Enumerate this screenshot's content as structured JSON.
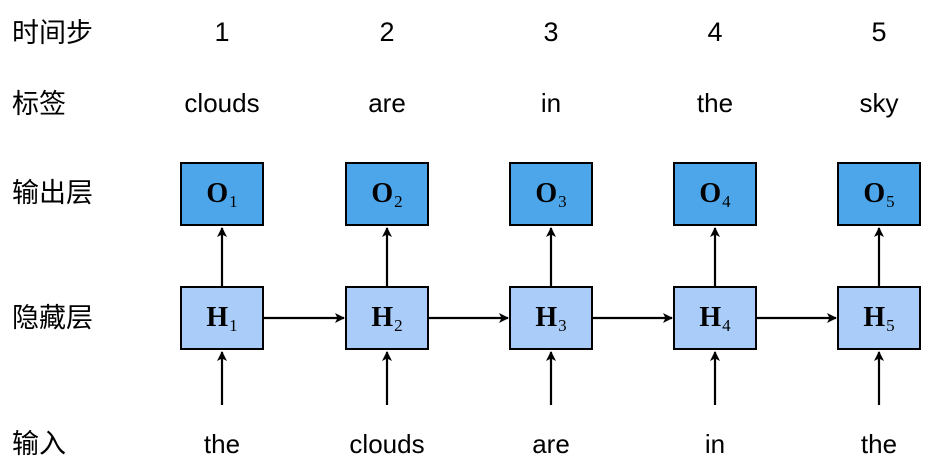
{
  "row_labels": {
    "timestep": "时间步",
    "label": "标签",
    "output_layer": "输出层",
    "hidden_layer": "隐藏层",
    "input": "输入"
  },
  "steps": [
    {
      "timestep": "1",
      "label": "clouds",
      "output_symbol": "O",
      "output_sub": "1",
      "hidden_symbol": "H",
      "hidden_sub": "1",
      "input": "the"
    },
    {
      "timestep": "2",
      "label": "are",
      "output_symbol": "O",
      "output_sub": "2",
      "hidden_symbol": "H",
      "hidden_sub": "2",
      "input": "clouds"
    },
    {
      "timestep": "3",
      "label": "in",
      "output_symbol": "O",
      "output_sub": "3",
      "hidden_symbol": "H",
      "hidden_sub": "3",
      "input": "are"
    },
    {
      "timestep": "4",
      "label": "the",
      "output_symbol": "O",
      "output_sub": "4",
      "hidden_symbol": "H",
      "hidden_sub": "4",
      "input": "in"
    },
    {
      "timestep": "5",
      "label": "sky",
      "output_symbol": "O",
      "output_sub": "5",
      "hidden_symbol": "H",
      "hidden_sub": "5",
      "input": "the"
    }
  ],
  "colors": {
    "output_fill": "#4ea6ea",
    "hidden_fill": "#a9cdf8",
    "stroke": "#000000"
  }
}
